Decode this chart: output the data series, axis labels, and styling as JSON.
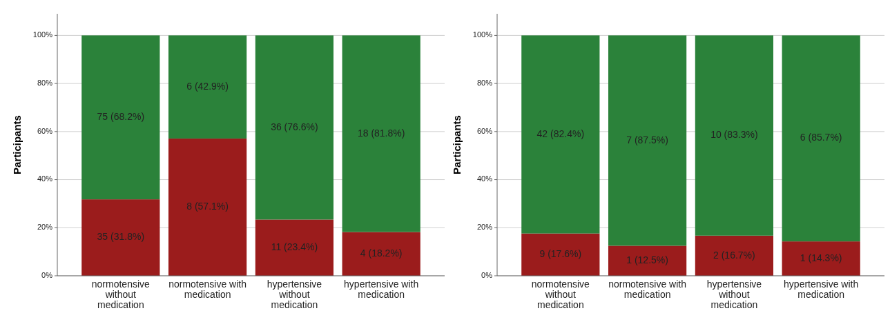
{
  "chart_data": [
    {
      "type": "bar",
      "stacked": true,
      "ylabel": "Participants",
      "categories": [
        "normotensive without medication",
        "normotensive with medication",
        "hypertensive without medication",
        "hypertensive with medication"
      ],
      "ylim": [
        0,
        109
      ],
      "yticks": [
        {
          "value": 0,
          "label": "0%"
        },
        {
          "value": 20,
          "label": "20%"
        },
        {
          "value": 40,
          "label": "40%"
        },
        {
          "value": 60,
          "label": "60%"
        },
        {
          "value": 80,
          "label": "80%"
        },
        {
          "value": 100,
          "label": "100%"
        }
      ],
      "grid": "y",
      "series": [
        {
          "color": "#9b1c1c",
          "values": [
            31.8,
            57.1,
            23.4,
            18.2
          ],
          "value_labels": [
            "35 (31.8%)",
            "8 (57.1%)",
            "11 (23.4%)",
            "4 (18.2%)"
          ]
        },
        {
          "color": "#2b823a",
          "values": [
            68.2,
            42.9,
            76.6,
            81.8
          ],
          "value_labels": [
            "75 (68.2%)",
            "6 (42.9%)",
            "36 (76.6%)",
            "18 (81.8%)"
          ]
        }
      ]
    },
    {
      "type": "bar",
      "stacked": true,
      "ylabel": "Participants",
      "categories": [
        "normotensive without medication",
        "normotensive with medication",
        "hypertensive without medication",
        "hypertensive with medication"
      ],
      "ylim": [
        0,
        109
      ],
      "yticks": [
        {
          "value": 0,
          "label": "0%"
        },
        {
          "value": 20,
          "label": "20%"
        },
        {
          "value": 40,
          "label": "40%"
        },
        {
          "value": 60,
          "label": "60%"
        },
        {
          "value": 80,
          "label": "80%"
        },
        {
          "value": 100,
          "label": "100%"
        }
      ],
      "grid": "y",
      "series": [
        {
          "color": "#9b1c1c",
          "values": [
            17.6,
            12.5,
            16.7,
            14.3
          ],
          "value_labels": [
            "9 (17.6%)",
            "1 (12.5%)",
            "2 (16.7%)",
            "1 (14.3%)"
          ]
        },
        {
          "color": "#2b823a",
          "values": [
            82.4,
            87.5,
            83.3,
            85.7
          ],
          "value_labels": [
            "42 (82.4%)",
            "7 (87.5%)",
            "10 (83.3%)",
            "6 (85.7%)"
          ]
        }
      ]
    }
  ]
}
